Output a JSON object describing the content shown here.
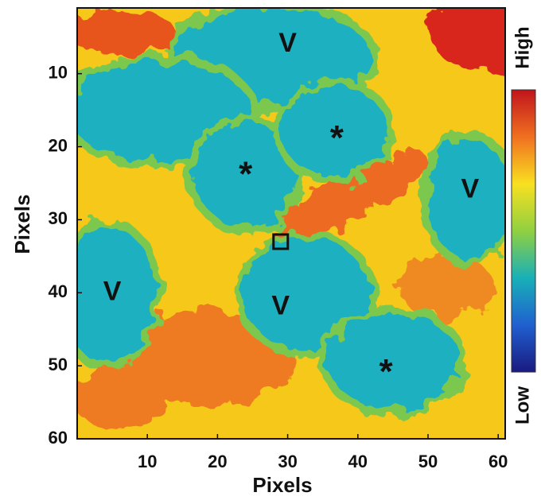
{
  "chart_data": {
    "type": "heatmap",
    "xlabel": "Pixels",
    "ylabel": "Pixels",
    "xlim": [
      0,
      61
    ],
    "ylim": [
      1,
      60
    ],
    "y_reversed": true,
    "xticks": [
      10,
      20,
      30,
      40,
      50,
      60
    ],
    "yticks": [
      10,
      20,
      30,
      40,
      50,
      60
    ],
    "colorbar": {
      "high_label": "High",
      "low_label": "Low",
      "colors": [
        "#c0141c",
        "#f07020",
        "#f8e020",
        "#90d040",
        "#18b0b8",
        "#2060d0",
        "#1a1a80"
      ]
    },
    "annotations": [
      {
        "text": "V",
        "x": 30,
        "y": 6
      },
      {
        "text": "*",
        "x": 37,
        "y": 18
      },
      {
        "text": "*",
        "x": 24,
        "y": 23
      },
      {
        "text": "V",
        "x": 56,
        "y": 26
      },
      {
        "text": "V",
        "x": 5,
        "y": 40
      },
      {
        "text": "V",
        "x": 29,
        "y": 42
      },
      {
        "text": "*",
        "x": 44,
        "y": 50
      }
    ],
    "markers": [
      {
        "shape": "square",
        "x": 29,
        "y": 33
      }
    ]
  }
}
